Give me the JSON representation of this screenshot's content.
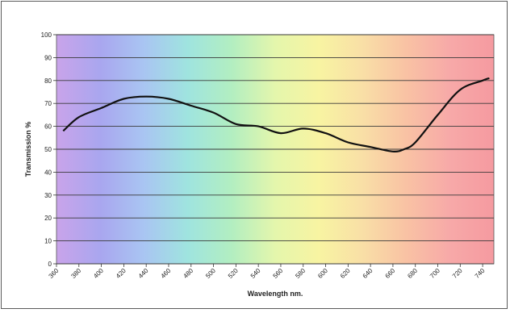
{
  "chart_data": {
    "type": "line",
    "title": "",
    "xlabel": "Wavelength nm.",
    "ylabel": "Transmission %",
    "xlim": [
      360,
      750
    ],
    "ylim": [
      0,
      100
    ],
    "x_ticks": [
      "360",
      "380",
      "400",
      "420",
      "440",
      "460",
      "480",
      "500",
      "520",
      "540",
      "560",
      "580",
      "600",
      "620",
      "640",
      "660",
      "680",
      "700",
      "720",
      "740"
    ],
    "y_ticks": [
      "0",
      "10",
      "20",
      "30",
      "40",
      "50",
      "60",
      "70",
      "80",
      "90",
      "100"
    ],
    "grid": true,
    "legend": "none",
    "background": "visible spectrum gradient",
    "line_color": "#111111",
    "series": [
      {
        "x": [
          366,
          380,
          400,
          420,
          440,
          460,
          480,
          500,
          520,
          540,
          560,
          580,
          600,
          620,
          640,
          660,
          670,
          680,
          700,
          720,
          740,
          746
        ],
        "y": [
          58,
          64,
          68,
          72,
          73,
          72,
          69,
          66,
          61,
          60,
          57,
          59,
          57,
          53,
          51,
          49,
          50,
          53,
          65,
          76,
          80,
          81
        ]
      }
    ]
  }
}
